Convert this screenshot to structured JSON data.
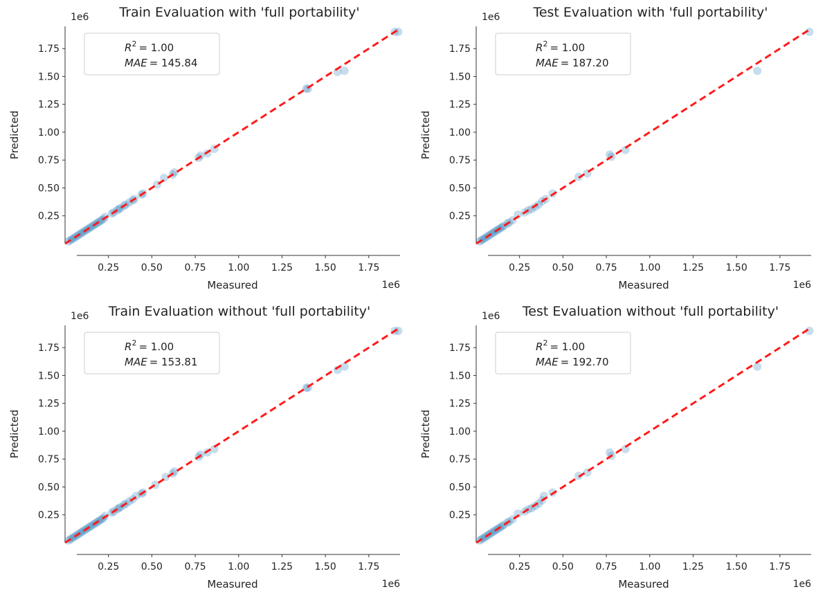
{
  "chart_data": [
    {
      "type": "scatter",
      "title": "Train Evaluation with 'full portability'",
      "xlabel": "Measured",
      "ylabel": "Predicted",
      "x_offset_label": "1e6",
      "y_offset_label": "1e6",
      "xlim": [
        0,
        1.93
      ],
      "ylim": [
        0,
        1.95
      ],
      "x_ticks": [
        "0.25",
        "0.50",
        "0.75",
        "1.00",
        "1.25",
        "1.50",
        "1.75"
      ],
      "y_ticks": [
        "0.25",
        "0.50",
        "0.75",
        "1.00",
        "1.25",
        "1.50",
        "1.75"
      ],
      "metrics_box": {
        "r2_symbol": "R",
        "r2_exp": "2",
        "r2_value": "= 1.00",
        "mae_symbol": "MAE",
        "mae_value": "= 145.84"
      },
      "reference_line": {
        "color": "#ff1a1a",
        "from": [
          0,
          0
        ],
        "to": [
          1.93,
          1.93
        ]
      },
      "point_color": "#1f77b4",
      "points": [
        [
          0.02,
          0.02
        ],
        [
          0.03,
          0.03
        ],
        [
          0.04,
          0.04
        ],
        [
          0.05,
          0.05
        ],
        [
          0.06,
          0.06
        ],
        [
          0.07,
          0.07
        ],
        [
          0.08,
          0.08
        ],
        [
          0.09,
          0.09
        ],
        [
          0.1,
          0.1
        ],
        [
          0.11,
          0.11
        ],
        [
          0.12,
          0.12
        ],
        [
          0.13,
          0.13
        ],
        [
          0.14,
          0.14
        ],
        [
          0.15,
          0.15
        ],
        [
          0.16,
          0.16
        ],
        [
          0.17,
          0.17
        ],
        [
          0.18,
          0.18
        ],
        [
          0.19,
          0.19
        ],
        [
          0.2,
          0.2
        ],
        [
          0.21,
          0.21
        ],
        [
          0.22,
          0.22
        ],
        [
          0.23,
          0.24
        ],
        [
          0.27,
          0.27
        ],
        [
          0.28,
          0.28
        ],
        [
          0.3,
          0.3
        ],
        [
          0.31,
          0.31
        ],
        [
          0.32,
          0.32
        ],
        [
          0.34,
          0.34
        ],
        [
          0.35,
          0.35
        ],
        [
          0.37,
          0.37
        ],
        [
          0.39,
          0.39
        ],
        [
          0.4,
          0.4
        ],
        [
          0.44,
          0.44
        ],
        [
          0.45,
          0.45
        ],
        [
          0.53,
          0.53
        ],
        [
          0.57,
          0.59
        ],
        [
          0.62,
          0.62
        ],
        [
          0.63,
          0.64
        ],
        [
          0.77,
          0.77
        ],
        [
          0.78,
          0.79
        ],
        [
          0.82,
          0.81
        ],
        [
          0.86,
          0.85
        ],
        [
          1.39,
          1.39
        ],
        [
          1.4,
          1.39
        ],
        [
          1.57,
          1.54
        ],
        [
          1.61,
          1.55
        ],
        [
          1.9,
          1.9
        ],
        [
          1.92,
          1.9
        ]
      ]
    },
    {
      "type": "scatter",
      "title": "Test Evaluation with 'full portability'",
      "xlabel": "Measured",
      "ylabel": "Predicted",
      "x_offset_label": "1e6",
      "y_offset_label": "1e6",
      "xlim": [
        0,
        1.93
      ],
      "ylim": [
        0,
        1.95
      ],
      "x_ticks": [
        "0.25",
        "0.50",
        "0.75",
        "1.00",
        "1.25",
        "1.50",
        "1.75"
      ],
      "y_ticks": [
        "0.25",
        "0.50",
        "0.75",
        "1.00",
        "1.25",
        "1.50",
        "1.75"
      ],
      "metrics_box": {
        "r2_symbol": "R",
        "r2_exp": "2",
        "r2_value": "= 1.00",
        "mae_symbol": "MAE",
        "mae_value": "= 187.20"
      },
      "reference_line": {
        "color": "#ff1a1a",
        "from": [
          0,
          0
        ],
        "to": [
          1.93,
          1.93
        ]
      },
      "point_color": "#1f77b4",
      "points": [
        [
          0.02,
          0.02
        ],
        [
          0.03,
          0.03
        ],
        [
          0.04,
          0.04
        ],
        [
          0.05,
          0.05
        ],
        [
          0.06,
          0.06
        ],
        [
          0.07,
          0.07
        ],
        [
          0.08,
          0.08
        ],
        [
          0.09,
          0.09
        ],
        [
          0.1,
          0.1
        ],
        [
          0.11,
          0.11
        ],
        [
          0.12,
          0.12
        ],
        [
          0.13,
          0.13
        ],
        [
          0.14,
          0.14
        ],
        [
          0.15,
          0.15
        ],
        [
          0.16,
          0.16
        ],
        [
          0.18,
          0.18
        ],
        [
          0.19,
          0.19
        ],
        [
          0.21,
          0.21
        ],
        [
          0.24,
          0.26
        ],
        [
          0.28,
          0.28
        ],
        [
          0.3,
          0.3
        ],
        [
          0.32,
          0.31
        ],
        [
          0.34,
          0.33
        ],
        [
          0.36,
          0.35
        ],
        [
          0.38,
          0.38
        ],
        [
          0.4,
          0.4
        ],
        [
          0.44,
          0.45
        ],
        [
          0.59,
          0.6
        ],
        [
          0.64,
          0.63
        ],
        [
          0.77,
          0.8
        ],
        [
          0.78,
          0.78
        ],
        [
          0.86,
          0.84
        ],
        [
          1.62,
          1.55
        ],
        [
          1.92,
          1.9
        ]
      ]
    },
    {
      "type": "scatter",
      "title": "Train Evaluation without 'full portability'",
      "xlabel": "Measured",
      "ylabel": "Predicted",
      "x_offset_label": "1e6",
      "y_offset_label": "1e6",
      "xlim": [
        0,
        1.93
      ],
      "ylim": [
        0,
        1.95
      ],
      "x_ticks": [
        "0.25",
        "0.50",
        "0.75",
        "1.00",
        "1.25",
        "1.50",
        "1.75"
      ],
      "y_ticks": [
        "0.25",
        "0.50",
        "0.75",
        "1.00",
        "1.25",
        "1.50",
        "1.75"
      ],
      "metrics_box": {
        "r2_symbol": "R",
        "r2_exp": "2",
        "r2_value": "= 1.00",
        "mae_symbol": "MAE",
        "mae_value": "= 153.81"
      },
      "reference_line": {
        "color": "#ff1a1a",
        "from": [
          0,
          0
        ],
        "to": [
          1.93,
          1.93
        ]
      },
      "point_color": "#1f77b4",
      "points": [
        [
          0.02,
          0.02
        ],
        [
          0.03,
          0.03
        ],
        [
          0.04,
          0.04
        ],
        [
          0.05,
          0.05
        ],
        [
          0.06,
          0.06
        ],
        [
          0.07,
          0.07
        ],
        [
          0.08,
          0.08
        ],
        [
          0.09,
          0.09
        ],
        [
          0.1,
          0.1
        ],
        [
          0.11,
          0.11
        ],
        [
          0.12,
          0.12
        ],
        [
          0.13,
          0.13
        ],
        [
          0.14,
          0.14
        ],
        [
          0.15,
          0.15
        ],
        [
          0.16,
          0.16
        ],
        [
          0.17,
          0.17
        ],
        [
          0.18,
          0.18
        ],
        [
          0.19,
          0.19
        ],
        [
          0.2,
          0.2
        ],
        [
          0.21,
          0.21
        ],
        [
          0.22,
          0.22
        ],
        [
          0.23,
          0.24
        ],
        [
          0.27,
          0.27
        ],
        [
          0.28,
          0.28
        ],
        [
          0.3,
          0.3
        ],
        [
          0.31,
          0.31
        ],
        [
          0.32,
          0.32
        ],
        [
          0.34,
          0.34
        ],
        [
          0.35,
          0.35
        ],
        [
          0.37,
          0.37
        ],
        [
          0.39,
          0.39
        ],
        [
          0.41,
          0.42
        ],
        [
          0.44,
          0.44
        ],
        [
          0.45,
          0.45
        ],
        [
          0.52,
          0.52
        ],
        [
          0.58,
          0.59
        ],
        [
          0.62,
          0.62
        ],
        [
          0.63,
          0.64
        ],
        [
          0.77,
          0.77
        ],
        [
          0.78,
          0.79
        ],
        [
          0.82,
          0.81
        ],
        [
          0.86,
          0.84
        ],
        [
          1.39,
          1.39
        ],
        [
          1.4,
          1.39
        ],
        [
          1.57,
          1.55
        ],
        [
          1.61,
          1.58
        ],
        [
          1.9,
          1.9
        ],
        [
          1.92,
          1.9
        ]
      ]
    },
    {
      "type": "scatter",
      "title": "Test Evaluation without 'full portability'",
      "xlabel": "Measured",
      "ylabel": "Predicted",
      "x_offset_label": "1e6",
      "y_offset_label": "1e6",
      "xlim": [
        0,
        1.93
      ],
      "ylim": [
        0,
        1.95
      ],
      "x_ticks": [
        "0.25",
        "0.50",
        "0.75",
        "1.00",
        "1.25",
        "1.50",
        "1.75"
      ],
      "y_ticks": [
        "0.25",
        "0.50",
        "0.75",
        "1.00",
        "1.25",
        "1.50",
        "1.75"
      ],
      "metrics_box": {
        "r2_symbol": "R",
        "r2_exp": "2",
        "r2_value": "= 1.00",
        "mae_symbol": "MAE",
        "mae_value": "= 192.70"
      },
      "reference_line": {
        "color": "#ff1a1a",
        "from": [
          0,
          0
        ],
        "to": [
          1.93,
          1.93
        ]
      },
      "point_color": "#1f77b4",
      "points": [
        [
          0.02,
          0.02
        ],
        [
          0.03,
          0.03
        ],
        [
          0.04,
          0.04
        ],
        [
          0.05,
          0.05
        ],
        [
          0.06,
          0.06
        ],
        [
          0.07,
          0.07
        ],
        [
          0.08,
          0.08
        ],
        [
          0.09,
          0.09
        ],
        [
          0.1,
          0.1
        ],
        [
          0.11,
          0.11
        ],
        [
          0.12,
          0.12
        ],
        [
          0.13,
          0.13
        ],
        [
          0.14,
          0.14
        ],
        [
          0.15,
          0.15
        ],
        [
          0.16,
          0.16
        ],
        [
          0.18,
          0.18
        ],
        [
          0.19,
          0.19
        ],
        [
          0.21,
          0.21
        ],
        [
          0.24,
          0.26
        ],
        [
          0.28,
          0.28
        ],
        [
          0.3,
          0.3
        ],
        [
          0.32,
          0.31
        ],
        [
          0.34,
          0.33
        ],
        [
          0.36,
          0.35
        ],
        [
          0.38,
          0.38
        ],
        [
          0.39,
          0.42
        ],
        [
          0.44,
          0.45
        ],
        [
          0.59,
          0.6
        ],
        [
          0.64,
          0.63
        ],
        [
          0.77,
          0.81
        ],
        [
          0.78,
          0.78
        ],
        [
          0.86,
          0.84
        ],
        [
          1.62,
          1.58
        ],
        [
          1.92,
          1.9
        ]
      ]
    }
  ]
}
